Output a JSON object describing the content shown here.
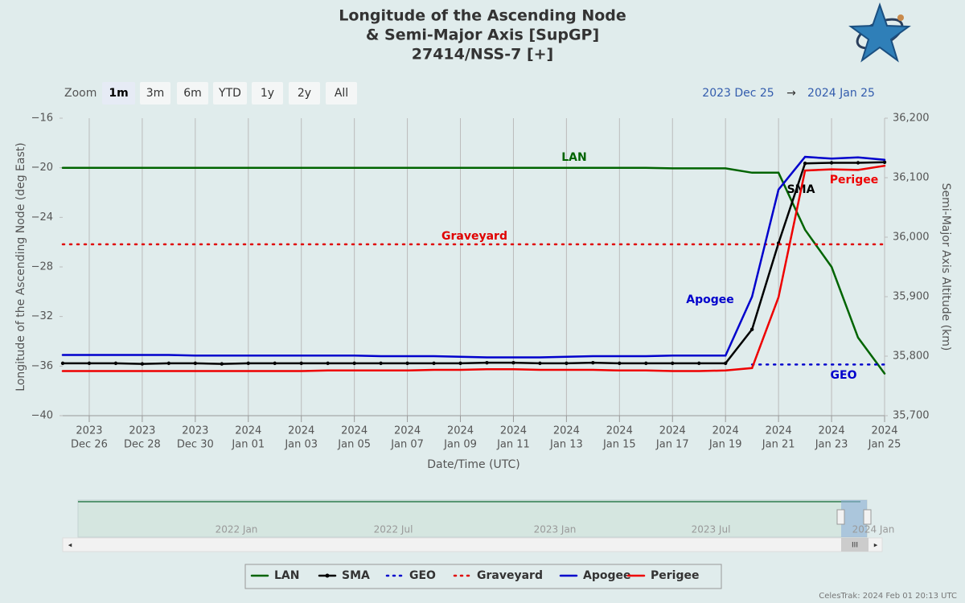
{
  "chart_data": {
    "type": "line",
    "title": [
      "Longitude of the Ascending Node",
      "& Semi-Major Axis [SupGP]",
      "27414/NSS-7 [+]"
    ],
    "x_label": "Date/Time (UTC)",
    "y_label": "Longitude of the Ascending Node (deg East)",
    "y2_label": "Semi-Major Axis Altitude (km)",
    "zoom_label": "Zoom",
    "zoom_buttons": [
      "1m",
      "3m",
      "6m",
      "YTD",
      "1y",
      "2y",
      "All"
    ],
    "selected_zoom": "1m",
    "range_arrow": "→",
    "footer": "CelesTrak: 2024 Feb 01 20:13 UTC",
    "navigator_labels": [
      "2022 Jan",
      "2022 Jul",
      "2023 Jan",
      "2023 Jul",
      "2024 Jan"
    ],
    "xlim": [
      {
        "value": "2023-12-25",
        "label": "2023 Dec 25"
      },
      {
        "value": "2024-01-25",
        "label": "2024 Jan 25"
      }
    ],
    "xticks": [
      {
        "value": "2023-12-26",
        "label": [
          "2023",
          "Dec 26"
        ]
      },
      {
        "value": "2023-12-28",
        "label": [
          "2023",
          "Dec 28"
        ]
      },
      {
        "value": "2023-12-30",
        "label": [
          "2023",
          "Dec 30"
        ]
      },
      {
        "value": "2024-01-01",
        "label": [
          "2024",
          "Jan 01"
        ]
      },
      {
        "value": "2024-01-03",
        "label": [
          "2024",
          "Jan 03"
        ]
      },
      {
        "value": "2024-01-05",
        "label": [
          "2024",
          "Jan 05"
        ]
      },
      {
        "value": "2024-01-07",
        "label": [
          "2024",
          "Jan 07"
        ]
      },
      {
        "value": "2024-01-09",
        "label": [
          "2024",
          "Jan 09"
        ]
      },
      {
        "value": "2024-01-11",
        "label": [
          "2024",
          "Jan 11"
        ]
      },
      {
        "value": "2024-01-13",
        "label": [
          "2024",
          "Jan 13"
        ]
      },
      {
        "value": "2024-01-15",
        "label": [
          "2024",
          "Jan 15"
        ]
      },
      {
        "value": "2024-01-17",
        "label": [
          "2024",
          "Jan 17"
        ]
      },
      {
        "value": "2024-01-19",
        "label": [
          "2024",
          "Jan 19"
        ]
      },
      {
        "value": "2024-01-21",
        "label": [
          "2024",
          "Jan 21"
        ]
      },
      {
        "value": "2024-01-23",
        "label": [
          "2024",
          "Jan 23"
        ]
      },
      {
        "value": "2024-01-25",
        "label": [
          "2024",
          "Jan 25"
        ]
      }
    ],
    "ylim": [
      -40,
      -16
    ],
    "yticks": [
      {
        "value": -16,
        "label": "−16"
      },
      {
        "value": -20,
        "label": "−20"
      },
      {
        "value": -24,
        "label": "−24"
      },
      {
        "value": -28,
        "label": "−28"
      },
      {
        "value": -32,
        "label": "−32"
      },
      {
        "value": -36,
        "label": "−36"
      },
      {
        "value": -40,
        "label": "−40"
      }
    ],
    "y2lim": [
      35700,
      36200
    ],
    "y2ticks": [
      {
        "value": 35700,
        "label": "35,700"
      },
      {
        "value": 35800,
        "label": "35,800"
      },
      {
        "value": 35900,
        "label": "35,900"
      },
      {
        "value": 36000,
        "label": "36,000"
      },
      {
        "value": 36100,
        "label": "36,100"
      },
      {
        "value": 36200,
        "label": "36,200"
      }
    ],
    "grid": "x",
    "legend": "bottom",
    "x": [
      "2023-12-25",
      "2023-12-26",
      "2023-12-27",
      "2023-12-28",
      "2023-12-29",
      "2023-12-30",
      "2023-12-31",
      "2024-01-01",
      "2024-01-02",
      "2024-01-03",
      "2024-01-04",
      "2024-01-05",
      "2024-01-06",
      "2024-01-07",
      "2024-01-08",
      "2024-01-09",
      "2024-01-10",
      "2024-01-11",
      "2024-01-12",
      "2024-01-13",
      "2024-01-14",
      "2024-01-15",
      "2024-01-16",
      "2024-01-17",
      "2024-01-18",
      "2024-01-19",
      "2024-01-20",
      "2024-01-21",
      "2024-01-22",
      "2024-01-23",
      "2024-01-24",
      "2024-01-25"
    ],
    "series": [
      {
        "name": "LAN",
        "color": "#006400",
        "dash": "solid",
        "axis": "y",
        "values": [
          -20.0,
          -20.0,
          -20.0,
          -20.0,
          -20.0,
          -20.0,
          -20.0,
          -20.0,
          -20.0,
          -20.0,
          -20.0,
          -20.0,
          -20.0,
          -20.0,
          -20.0,
          -20.0,
          -20.0,
          -20.0,
          -20.0,
          -20.0,
          -20.0,
          -20.0,
          -20.0,
          -20.05,
          -20.05,
          -20.05,
          -20.4,
          -20.4,
          -25.0,
          -28.0,
          -33.7,
          -36.6
        ]
      },
      {
        "name": "SMA",
        "color": "#000000",
        "dash": "solid",
        "axis": "y2",
        "markers": true,
        "values": [
          35788,
          35788,
          35788,
          35787,
          35788,
          35788,
          35787,
          35788,
          35788,
          35788,
          35788,
          35788,
          35788,
          35788,
          35788,
          35788,
          35789,
          35789,
          35788,
          35788,
          35789,
          35788,
          35788,
          35788,
          35788,
          35788,
          35845,
          35990,
          36124,
          36125,
          36125,
          36126
        ]
      },
      {
        "name": "GEO",
        "color": "#0000cc",
        "dash": "dot",
        "axis": "y2",
        "values": [
          null,
          null,
          null,
          null,
          null,
          null,
          null,
          null,
          null,
          null,
          null,
          null,
          null,
          null,
          null,
          null,
          null,
          null,
          null,
          null,
          null,
          null,
          null,
          null,
          null,
          null,
          35786,
          35786,
          35786,
          35786,
          35786,
          35786
        ]
      },
      {
        "name": "Graveyard",
        "color": "#e00000",
        "dash": "dot",
        "axis": "y2",
        "values": [
          35988,
          35988,
          35988,
          35988,
          35988,
          35988,
          35988,
          35988,
          35988,
          35988,
          35988,
          35988,
          35988,
          35988,
          35988,
          35988,
          35988,
          35988,
          35988,
          35988,
          35988,
          35988,
          35988,
          35988,
          35988,
          35988,
          35988,
          35988,
          35988,
          35988,
          35988,
          35988
        ]
      },
      {
        "name": "Apogee",
        "color": "#0000cc",
        "dash": "solid",
        "axis": "y2",
        "values": [
          35802,
          35802,
          35802,
          35802,
          35802,
          35801,
          35801,
          35801,
          35801,
          35801,
          35801,
          35801,
          35800,
          35800,
          35800,
          35799,
          35798,
          35798,
          35798,
          35799,
          35800,
          35800,
          35800,
          35801,
          35801,
          35801,
          35900,
          36080,
          36135,
          36132,
          36134,
          36130
        ]
      },
      {
        "name": "Perigee",
        "color": "#ee0000",
        "dash": "solid",
        "axis": "y2",
        "values": [
          35775,
          35775,
          35775,
          35775,
          35775,
          35775,
          35775,
          35775,
          35775,
          35775,
          35776,
          35776,
          35776,
          35776,
          35777,
          35777,
          35778,
          35778,
          35777,
          35777,
          35777,
          35776,
          35776,
          35775,
          35775,
          35776,
          35780,
          35899,
          36112,
          36114,
          36113,
          36120
        ]
      }
    ]
  }
}
